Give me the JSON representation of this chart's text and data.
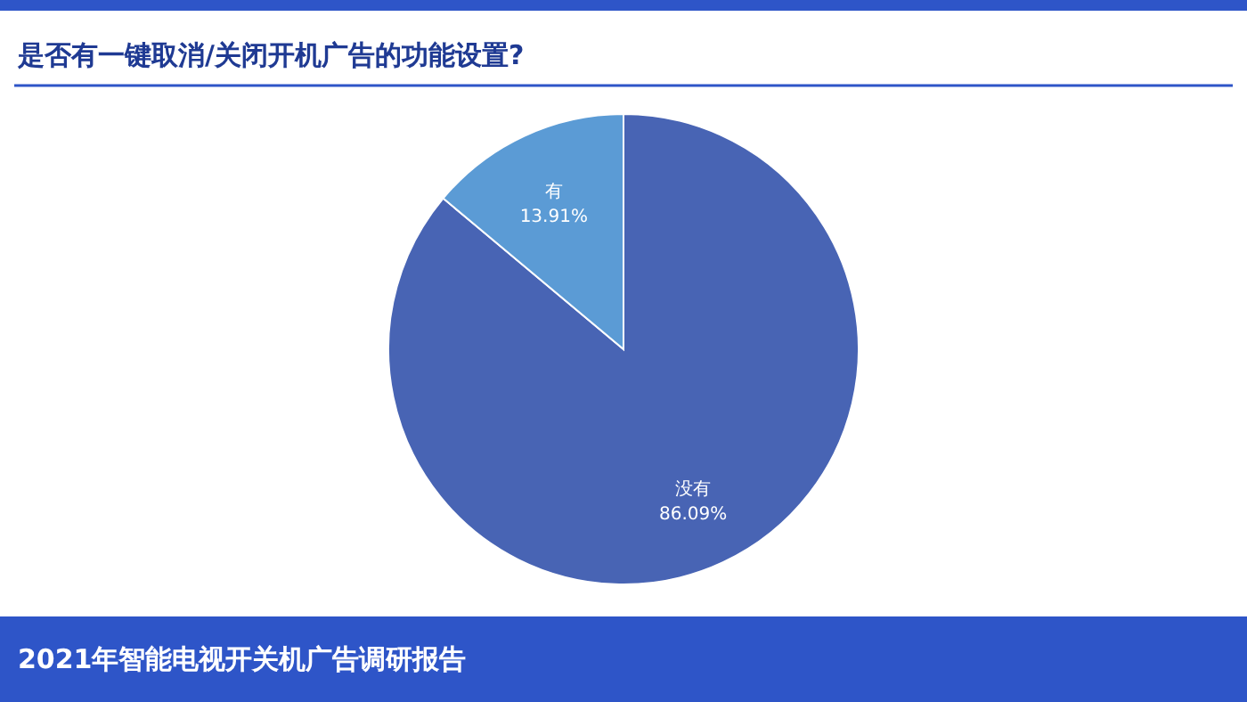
{
  "chart_data": {
    "type": "pie",
    "title": "是否有一键取消/关闭开机广告的功能设置?",
    "categories": [
      "没有",
      "有"
    ],
    "values": [
      86.09,
      13.91
    ],
    "value_labels": [
      "86.09%",
      "13.91%"
    ],
    "colors": [
      "#4864b4",
      "#5b9bd5"
    ],
    "annotations": [
      "2021年智能电视开关机广告调研报告"
    ],
    "legend": false
  }
}
